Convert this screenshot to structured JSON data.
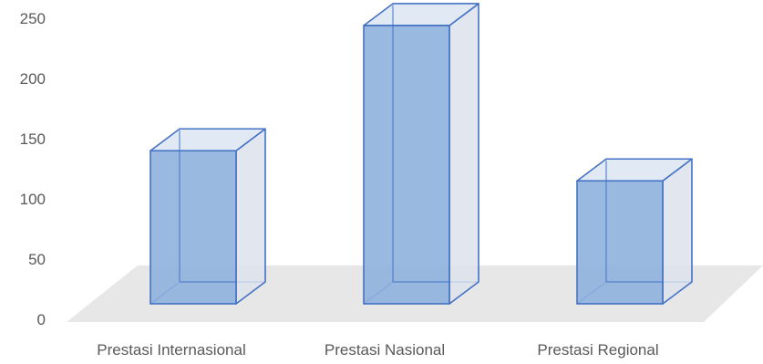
{
  "chart_data": {
    "type": "bar",
    "style": "3d-column",
    "categories": [
      "Prestasi Internasional",
      "Prestasi Nasional",
      "Prestasi Regional"
    ],
    "values": [
      118,
      222,
      93
    ],
    "ylim": [
      0,
      250
    ],
    "yticks": [
      "0",
      "50",
      "100",
      "150",
      "200",
      "250"
    ],
    "grid": false,
    "legend": "none",
    "colors": {
      "bar_front": "#8EB1DE",
      "bar_top": "#DCE5F2",
      "bar_side": "#DCE2EC",
      "bar_stroke": "#4472C4",
      "floor": "#E7E7E7",
      "text": "#595959"
    }
  }
}
